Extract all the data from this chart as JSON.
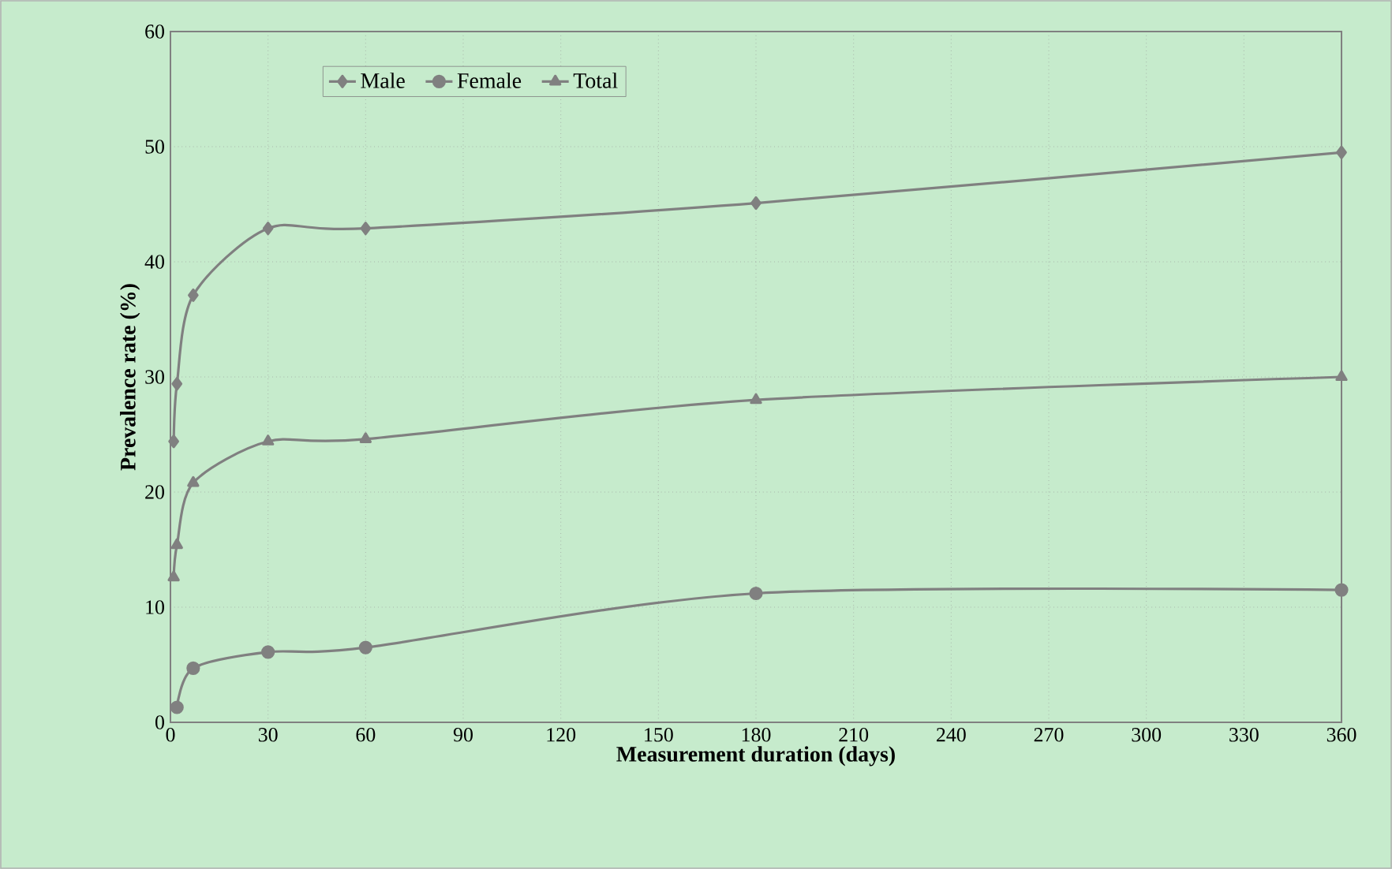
{
  "chart_data": {
    "type": "line",
    "xlabel": "Measurement duration (days)",
    "ylabel": "Prevalence rate (%)",
    "x": [
      1,
      2,
      7,
      30,
      60,
      180,
      360
    ],
    "series": [
      {
        "name": "Male",
        "color": "#808080",
        "marker": "diamond",
        "values": [
          24.4,
          29.4,
          37.1,
          42.9,
          42.9,
          45.1,
          49.5
        ]
      },
      {
        "name": "Female",
        "color": "#808080",
        "marker": "circle",
        "values": [
          null,
          1.3,
          4.7,
          6.1,
          6.5,
          11.2,
          11.5
        ]
      },
      {
        "name": "Total",
        "color": "#808080",
        "marker": "triangle",
        "values": [
          12.6,
          15.4,
          20.8,
          24.4,
          24.6,
          28.0,
          30.0
        ]
      }
    ],
    "xlim": [
      0,
      360
    ],
    "xticks": [
      0,
      30,
      60,
      90,
      120,
      150,
      180,
      210,
      240,
      270,
      300,
      330,
      360
    ],
    "ylim": [
      0,
      60
    ],
    "yticks": [
      0,
      10,
      20,
      30,
      40,
      50,
      60
    ],
    "grid": true,
    "legend": "top left",
    "line_style": "solid"
  }
}
